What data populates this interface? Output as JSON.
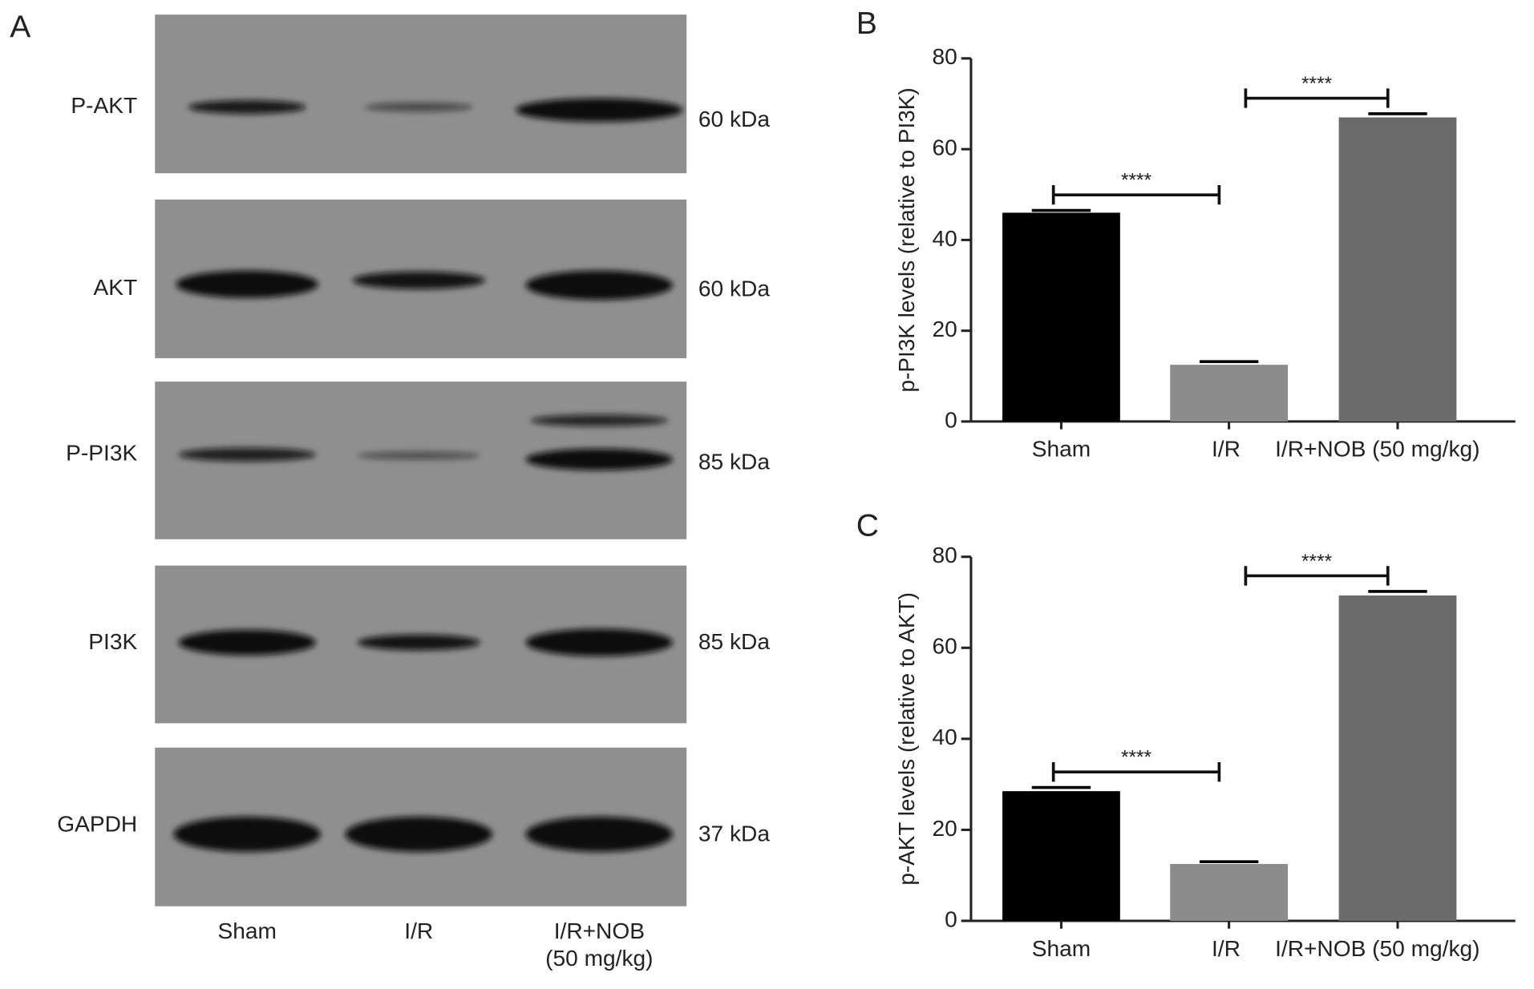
{
  "blot": {
    "panel_label": "A",
    "rows": [
      {
        "label": "P-AKT",
        "size": "60 kDa"
      },
      {
        "label": "AKT",
        "size": "60 kDa"
      },
      {
        "label": "P-PI3K",
        "size": "85 kDa"
      },
      {
        "label": "PI3K",
        "size": "85 kDa"
      },
      {
        "label": "GAPDH",
        "size": "37 kDa"
      }
    ],
    "lanes": [
      [
        "Sham"
      ],
      [
        "I/R"
      ],
      [
        "I/R+NOB",
        "(50 mg/kg)"
      ]
    ]
  },
  "chart_data": [
    {
      "type": "bar",
      "panel_label": "B",
      "y_label": "p-PI3K levels (relative to PI3K)",
      "categories": [
        "Sham",
        "I/R",
        "I/R+NOB (50 mg/kg)"
      ],
      "values": [
        46,
        12.5,
        67
      ],
      "errors": [
        0.5,
        0.7,
        0.8
      ],
      "colors": [
        "#000000",
        "#8c8c8c",
        "#6b6b6b"
      ],
      "ylim": [
        0,
        80
      ],
      "yticks": [
        0,
        20,
        40,
        60,
        80
      ],
      "annotations": [
        "****",
        "****"
      ]
    },
    {
      "type": "bar",
      "panel_label": "C",
      "y_label": "p-AKT levels (relative to AKT)",
      "categories": [
        "Sham",
        "I/R",
        "I/R+NOB (50 mg/kg)"
      ],
      "values": [
        28.5,
        12.5,
        71.5
      ],
      "errors": [
        0.8,
        0.5,
        0.9
      ],
      "colors": [
        "#000000",
        "#8c8c8c",
        "#6b6b6b"
      ],
      "ylim": [
        0,
        80
      ],
      "yticks": [
        0,
        20,
        40,
        60,
        80
      ],
      "annotations": [
        "****",
        "****"
      ]
    }
  ]
}
